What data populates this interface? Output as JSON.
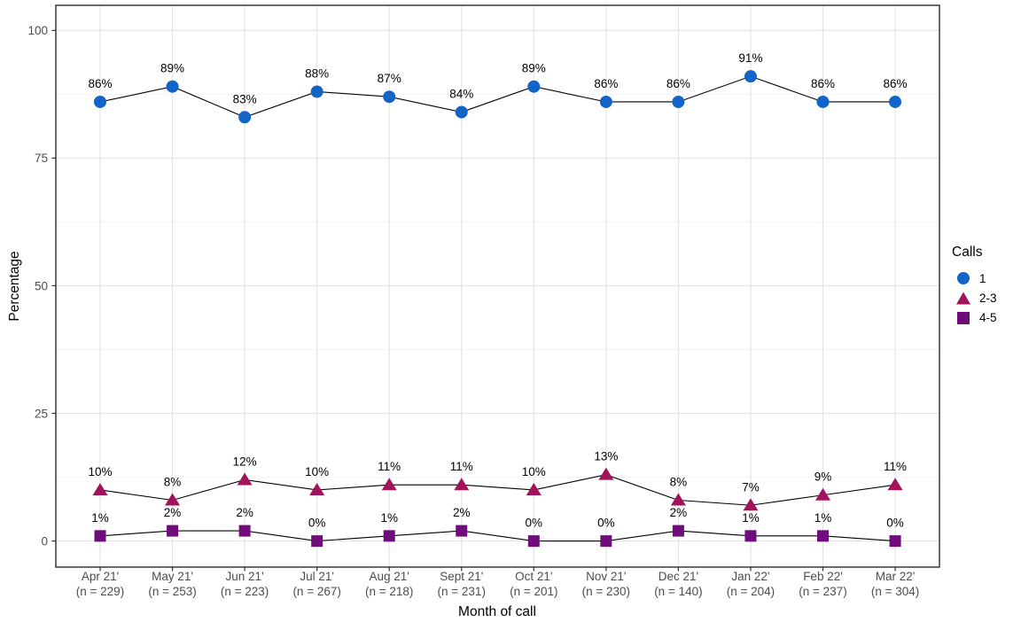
{
  "chart_data": {
    "type": "line",
    "title": "",
    "xlabel": "Month of call",
    "ylabel": "Percentage",
    "ylim": [
      0,
      100
    ],
    "yticks": [
      0,
      25,
      50,
      75,
      100
    ],
    "minor_yticks": [
      12.5,
      37.5,
      62.5,
      87.5
    ],
    "grid": "major-and-minor-horizontal, major-vertical",
    "legend_title": "Calls",
    "legend_position": "right",
    "unit": "%",
    "categories": [
      "Apr 21'",
      "May 21'",
      "Jun 21'",
      "Jul 21'",
      "Aug 21'",
      "Sept 21'",
      "Oct 21'",
      "Nov 21'",
      "Dec 21'",
      "Jan 22'",
      "Feb 22'",
      "Mar 22'"
    ],
    "sample_sizes": [
      "(n = 229)",
      "(n = 253)",
      "(n = 223)",
      "(n = 267)",
      "(n = 218)",
      "(n = 231)",
      "(n = 201)",
      "(n = 230)",
      "(n = 140)",
      "(n = 204)",
      "(n = 237)",
      "(n = 304)"
    ],
    "series": [
      {
        "name": "1",
        "marker": "circle",
        "color": "#1264C8",
        "values": [
          86,
          89,
          83,
          88,
          87,
          84,
          89,
          86,
          86,
          91,
          86,
          86
        ]
      },
      {
        "name": "2-3",
        "marker": "triangle",
        "color": "#A2135B",
        "values": [
          10,
          8,
          12,
          10,
          11,
          11,
          10,
          13,
          8,
          7,
          9,
          11
        ]
      },
      {
        "name": "4-5",
        "marker": "square",
        "color": "#6E0C7C",
        "values": [
          1,
          2,
          2,
          0,
          1,
          2,
          0,
          0,
          2,
          1,
          1,
          0
        ]
      }
    ],
    "colors": {
      "axis_text": "#4d4d4d",
      "value_label_text": "#000000",
      "line": "#000000",
      "major_gridline": "#e3e3e3",
      "minor_gridline": "#f2f2f2",
      "panel_border": "#2a2a2a",
      "background": "#ffffff"
    }
  }
}
